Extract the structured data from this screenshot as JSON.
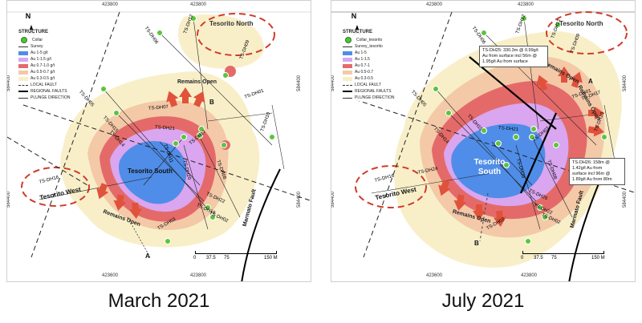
{
  "captions": {
    "left": "March 2021",
    "right": "July 2021"
  },
  "legend": {
    "title": "STRUCTURE",
    "collar": "Collar",
    "collar_right": "Collar_tesorito",
    "survey": "Survey",
    "survey_right": "Survey_tesorito",
    "local_fault": "LOCAL FAULT",
    "regional_faults": "REGIONAL FAULTS",
    "plunge": "PLUNGE DIRECTION",
    "grades_left": [
      "Au 1-5 g/t",
      "Au 1-1.5 g/t",
      "Au 0.7-1.0 g/t",
      "Au 0.5-0.7 g/t",
      "Au 0.3-0.5 g/t"
    ],
    "grades_right": [
      "Au 1-5",
      "Au 1-1.5",
      "Au 0.7-1",
      "Au 0.5-0.7",
      "Au 0.3-0.5"
    ],
    "colors": [
      "#4f8de8",
      "#d9a6ef",
      "#e46a6a",
      "#f3c9a8",
      "#f8efc9"
    ]
  },
  "north": "N",
  "left": {
    "coords_top": [
      "423800",
      "423800"
    ],
    "coords_bottom": [
      "423600",
      "423800"
    ],
    "coords_side": [
      "584400",
      "584400",
      "584400",
      "584400"
    ],
    "holes": [
      "TS-DH06",
      "TS-DH12",
      "TS-DH09",
      "TS-DH05",
      "TS-DH01",
      "TS-DH15",
      "TS-DH21",
      "TS-DH10",
      "TS-DH11",
      "TS-DH14",
      "TS-DH17",
      "TS-DH08",
      "TS-DH20",
      "TS-DH16",
      "TS-DH22",
      "TS-DH19",
      "TS-DH03",
      "TS-DH02",
      "TS-DH07"
    ],
    "places": [
      "Tesorito North",
      "Tesorito South",
      "Tesorito West",
      "Marmato Fault"
    ],
    "remains_open": [
      "Remains Open",
      "Remains Open"
    ],
    "section_labels": [
      "B",
      "A"
    ],
    "scale": [
      "0",
      "37.5",
      "75",
      "150 M"
    ]
  },
  "right": {
    "coords_top": [
      "423800",
      "423800"
    ],
    "coords_bottom": [
      "423600",
      "423800"
    ],
    "coords_side": [
      "584400",
      "584400",
      "584400",
      "584400"
    ],
    "holes": [
      "TS-DH06",
      "TS-DH12",
      "TS-DH13",
      "TS-DH09",
      "TS-DH05",
      "TS-DH01",
      "TS-DH14",
      "TS-DH15",
      "TS-DH21",
      "TS-DH17",
      "TS-DH10",
      "TS-DH24",
      "TS-DH16",
      "TS-DH20",
      "TS-DH22",
      "TS-DH26",
      "TS-DH08",
      "TS-DH03",
      "TS-DH02",
      "TS-DH07"
    ],
    "places": [
      "Tesorito North",
      "Tesorito South",
      "Tesorito West",
      "Marmato Fault"
    ],
    "remains_open": [
      "Remains Open",
      "Remains Open",
      "Remains Open"
    ],
    "section_labels": [
      "A",
      "B"
    ],
    "scale": [
      "0",
      "37.5",
      "75",
      "150 M"
    ],
    "annotation_dh25": [
      "TS-DH25: 330.3m @ 0.99g/t",
      "Au from surface incl 56m @",
      "1.95g/t Au from surface"
    ],
    "annotation_dh26": [
      "TS-DH26:   158m   @",
      "1.42g/t      Au      from",
      "surface  incl  96m  @",
      "1.89g/t Au from 80m"
    ]
  }
}
